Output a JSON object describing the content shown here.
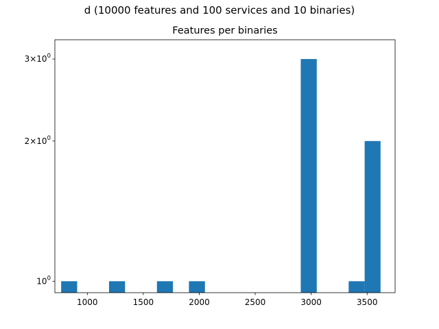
{
  "figure": {
    "suptitle": "d (10000 features and 100 services and 10 binaries)"
  },
  "chart_data": {
    "type": "bar",
    "title": "Features per binaries",
    "xlabel": "",
    "ylabel": "",
    "x_scale": "linear",
    "y_scale": "log",
    "xlim": [
      710,
      3750
    ],
    "ylim": [
      0.945,
      3.3
    ],
    "x_ticks": [
      {
        "value": 1000,
        "label": "1000"
      },
      {
        "value": 1500,
        "label": "1500"
      },
      {
        "value": 2000,
        "label": "2000"
      },
      {
        "value": 2500,
        "label": "2500"
      },
      {
        "value": 3000,
        "label": "3000"
      },
      {
        "value": 3500,
        "label": "3500"
      }
    ],
    "y_ticks": [
      {
        "value": 1,
        "base": "10",
        "exp": "0",
        "mult": ""
      },
      {
        "value": 2,
        "base": "10",
        "exp": "0",
        "mult": "2×"
      },
      {
        "value": 3,
        "base": "10",
        "exp": "0",
        "mult": "3×"
      }
    ],
    "bar_color": "#1f77b4",
    "grid": false,
    "bins": [
      {
        "x0": 766,
        "x1": 909,
        "count": 1
      },
      {
        "x0": 1194,
        "x1": 1337,
        "count": 1
      },
      {
        "x0": 1622,
        "x1": 1765,
        "count": 1
      },
      {
        "x0": 1908,
        "x1": 2051,
        "count": 1
      },
      {
        "x0": 2907,
        "x1": 3050,
        "count": 3
      },
      {
        "x0": 3335,
        "x1": 3478,
        "count": 1
      },
      {
        "x0": 3478,
        "x1": 3620,
        "count": 2
      }
    ]
  }
}
